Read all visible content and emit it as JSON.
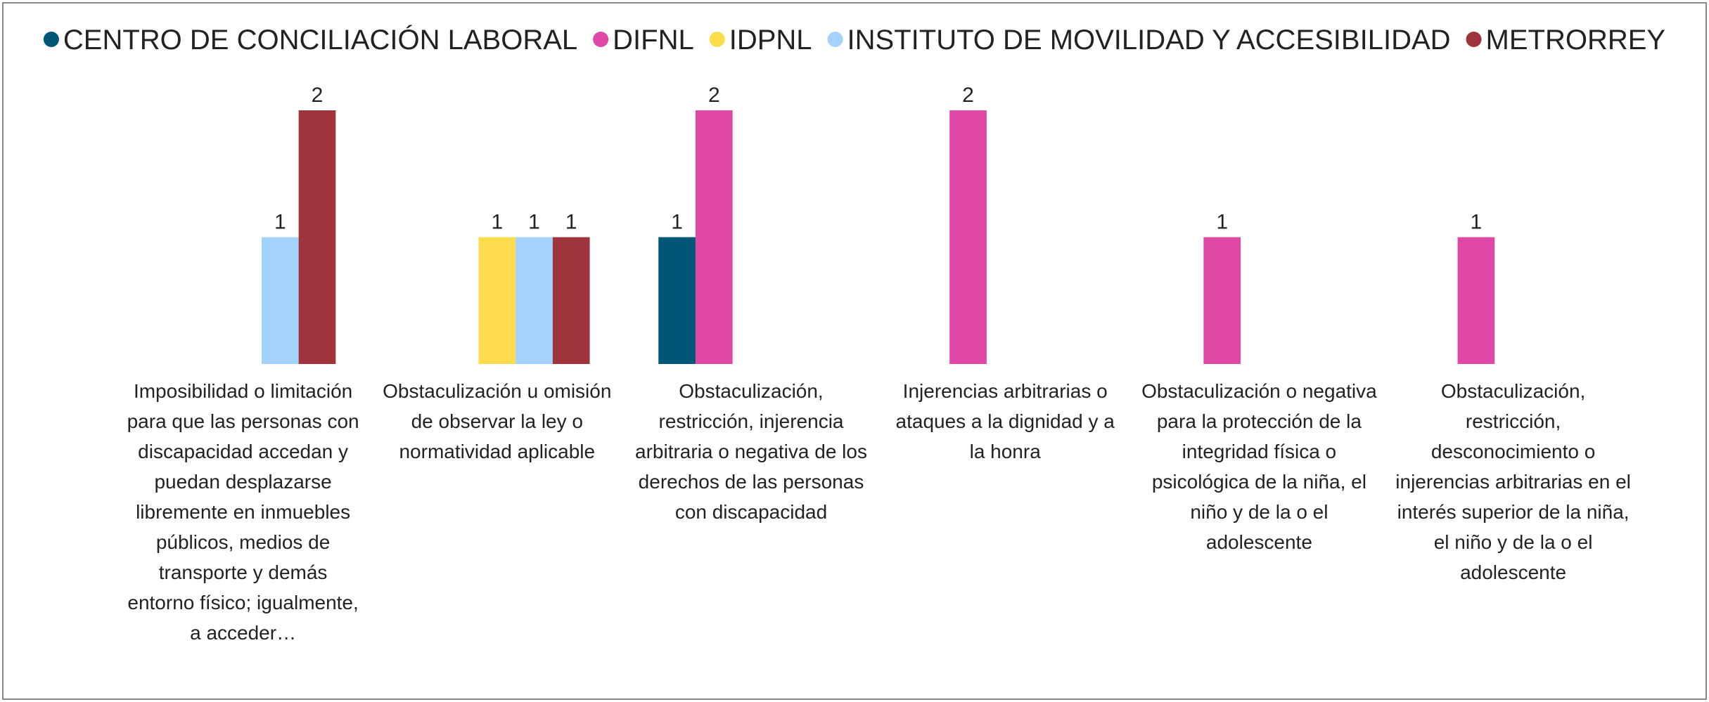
{
  "chart_data": {
    "type": "bar",
    "categories": [
      "Imposibilidad o limitación para que las personas con discapacidad accedan y puedan desplazarse libremente en inmuebles públicos, medios de transporte y demás entorno físico; igualmente, a acceder…",
      "Obstaculización u omisión de observar la ley o normatividad aplicable",
      "Obstaculización, restricción, injerencia arbitraria o negativa de los derechos de las personas con discapacidad",
      "Injerencias arbitrarias o ataques a la dignidad y a la honra",
      "Obstaculización o negativa para la protección de la integridad física o psicológica de la niña, el niño y de la o el adolescente",
      "Obstaculización, restricción, desconocimiento o injerencias arbitrarias en el interés superior de la niña, el niño y de la o el adolescente"
    ],
    "series": [
      {
        "name": "CENTRO DE CONCILIACIÓN LABORAL",
        "color": "#005677",
        "values": [
          null,
          null,
          1,
          null,
          null,
          null
        ]
      },
      {
        "name": "DIFNL",
        "color": "#e048a8",
        "values": [
          null,
          null,
          2,
          2,
          1,
          1
        ]
      },
      {
        "name": "IDPNL",
        "color": "#fcdc4d",
        "values": [
          null,
          1,
          null,
          null,
          null,
          null
        ]
      },
      {
        "name": "INSTITUTO DE MOVILIDAD Y ACCESIBILIDAD",
        "color": "#a3d3fc",
        "values": [
          1,
          1,
          null,
          null,
          null,
          null
        ]
      },
      {
        "name": "METRORREY",
        "color": "#a0343d",
        "values": [
          2,
          1,
          null,
          null,
          null,
          null
        ]
      }
    ],
    "legend": "top"
  }
}
